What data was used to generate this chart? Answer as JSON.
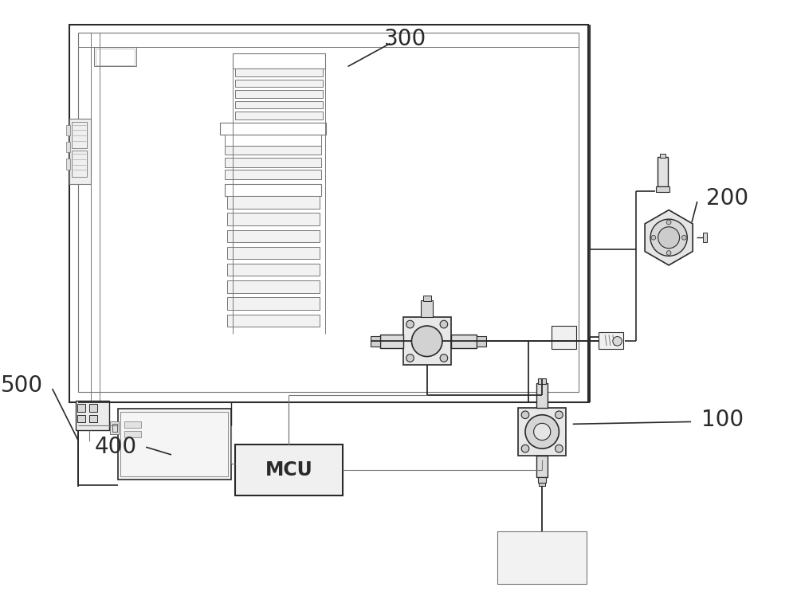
{
  "bg_color": "#ffffff",
  "dc": "#2a2a2a",
  "gc": "#777777",
  "lgc": "#aaaaaa",
  "label_fontsize": 20,
  "mcu_fontsize": 17
}
